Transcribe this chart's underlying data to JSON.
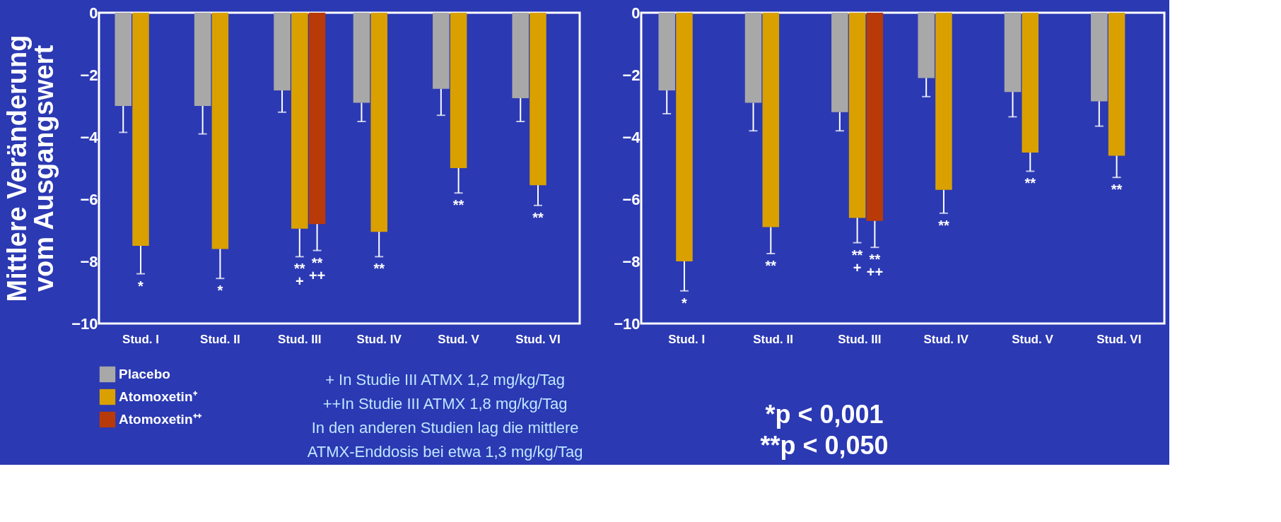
{
  "chart_data": [
    {
      "type": "bar",
      "ylabel": "Mittlere Veränderung\nvom Ausgangswert",
      "categories": [
        "Stud. I",
        "Stud. II",
        "Stud. III",
        "Stud. IV",
        "Stud. V",
        "Stud. VI"
      ],
      "ylim": [
        -10,
        0
      ],
      "yticks": [
        -10,
        -8,
        -6,
        -4,
        -2,
        0
      ],
      "grid": false,
      "legend": "bottom left",
      "series": [
        {
          "name": "Placebo",
          "color": "#a8a8a8",
          "values": [
            -3.0,
            -3.0,
            -2.5,
            -2.9,
            -2.45,
            -2.75
          ],
          "errors": [
            [
              -3.85,
              -3.0
            ],
            [
              -3.9,
              -3.0
            ],
            [
              -3.2,
              -2.5
            ],
            [
              -3.5,
              -2.9
            ],
            [
              -3.3,
              -2.45
            ],
            [
              -3.5,
              -2.75
            ]
          ]
        },
        {
          "name": "Atomoxetin⁺",
          "color": "#d9a000",
          "values": [
            -7.5,
            -7.6,
            -6.95,
            -7.05,
            -5.0,
            -5.55
          ],
          "errors": [
            [
              -8.4,
              -7.5
            ],
            [
              -8.55,
              -7.6
            ],
            [
              -7.85,
              -6.95
            ],
            [
              -7.85,
              -7.05
            ],
            [
              -5.8,
              -5.0
            ],
            [
              -6.2,
              -5.55
            ]
          ],
          "value_labels": [
            "*",
            "*",
            "**\n+",
            "**",
            "**",
            "**"
          ]
        },
        {
          "name": "Atomoxetin⁺⁺",
          "color": "#b83a08",
          "values": [
            null,
            null,
            -6.8,
            null,
            null,
            null
          ],
          "errors": [
            null,
            null,
            [
              -7.65,
              -6.8
            ],
            null,
            null,
            null
          ],
          "value_labels": [
            null,
            null,
            "**\n++",
            null,
            null,
            null
          ]
        }
      ],
      "annotations": [
        "+ In Studie III ATMX 1,2 mg/kg/Tag",
        "++In Studie III ATMX 1,8 mg/kg/Tag",
        "In den anderen Studien lag die mittlere",
        "ATMX-Enddosis bei etwa 1,3 mg/kg/Tag"
      ]
    },
    {
      "type": "bar",
      "categories": [
        "Stud.  I",
        "Stud. II",
        "Stud. III",
        "Stud. IV",
        "Stud. V",
        "Stud. VI"
      ],
      "ylim": [
        -10,
        0
      ],
      "yticks": [
        -10,
        -8,
        -6,
        -4,
        -2,
        0
      ],
      "grid": false,
      "series": [
        {
          "color": "#a8a8a8",
          "values": [
            -2.5,
            -2.9,
            -3.2,
            -2.1,
            -2.55,
            -2.85
          ],
          "errors": [
            [
              -3.25,
              -2.5
            ],
            [
              -3.8,
              -2.9
            ],
            [
              -3.8,
              -3.2
            ],
            [
              -2.7,
              -2.1
            ],
            [
              -3.35,
              -2.55
            ],
            [
              -3.65,
              -2.85
            ]
          ]
        },
        {
          "color": "#d9a000",
          "values": [
            -8.0,
            -6.9,
            -6.6,
            -5.7,
            -4.5,
            -4.6
          ],
          "errors": [
            [
              -8.95,
              -8.0
            ],
            [
              -7.75,
              -6.9
            ],
            [
              -7.4,
              -6.6
            ],
            [
              -6.45,
              -5.7
            ],
            [
              -5.1,
              -4.5
            ],
            [
              -5.3,
              -4.6
            ]
          ],
          "value_labels": [
            "*",
            "**",
            "**\n+",
            "**",
            "**",
            "**"
          ]
        },
        {
          "color": "#b83a08",
          "values": [
            null,
            null,
            -6.7,
            null,
            null,
            null
          ],
          "errors": [
            null,
            null,
            [
              -7.55,
              -6.7
            ],
            null,
            null,
            null
          ],
          "value_labels": [
            null,
            null,
            "**\n++",
            null,
            null,
            null
          ]
        }
      ],
      "annotations": [
        "*p < 0,001",
        "**p < 0,050"
      ]
    }
  ]
}
